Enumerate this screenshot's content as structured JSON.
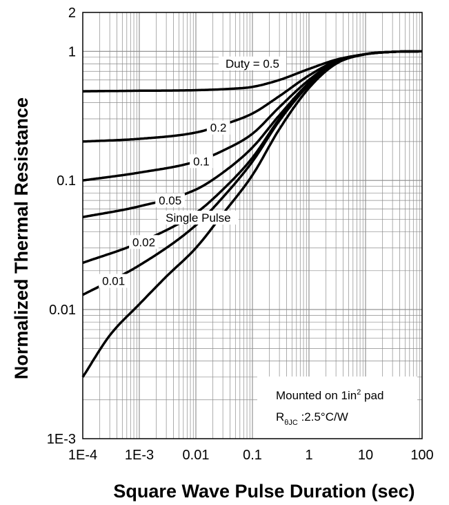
{
  "chart_data": {
    "type": "line",
    "title": "",
    "xlabel": "Square Wave Pulse Duration (sec)",
    "ylabel": "Normalized Thermal Resistance",
    "x_scale": "log",
    "y_scale": "log",
    "xlim": [
      0.0001,
      100
    ],
    "ylim": [
      0.001,
      2
    ],
    "grid": true,
    "x_ticks": [
      "1E-4",
      "1E-3",
      "0.01",
      "0.1",
      "1",
      "10",
      "100"
    ],
    "y_ticks": [
      "1E-3",
      "0.01",
      "0.1",
      "1",
      "2"
    ],
    "series": [
      {
        "name": "Duty = 0.5",
        "x": [
          0.0001,
          0.001,
          0.01,
          0.05,
          0.1,
          0.3,
          1,
          3,
          10,
          30,
          100
        ],
        "y": [
          0.49,
          0.495,
          0.5,
          0.515,
          0.53,
          0.6,
          0.73,
          0.86,
          0.95,
          0.99,
          1.0
        ]
      },
      {
        "name": "0.2",
        "x": [
          0.0001,
          0.001,
          0.01,
          0.03,
          0.1,
          0.3,
          1,
          3,
          10,
          30,
          100
        ],
        "y": [
          0.2,
          0.21,
          0.235,
          0.27,
          0.33,
          0.45,
          0.65,
          0.84,
          0.95,
          0.99,
          1.0
        ]
      },
      {
        "name": "0.1",
        "x": [
          0.0001,
          0.001,
          0.01,
          0.03,
          0.1,
          0.3,
          1,
          3,
          10,
          30,
          100
        ],
        "y": [
          0.1,
          0.115,
          0.14,
          0.17,
          0.23,
          0.37,
          0.6,
          0.83,
          0.95,
          0.99,
          1.0
        ]
      },
      {
        "name": "0.05",
        "x": [
          0.0001,
          0.001,
          0.01,
          0.03,
          0.1,
          0.3,
          1,
          3,
          10,
          30,
          100
        ],
        "y": [
          0.052,
          0.063,
          0.085,
          0.115,
          0.18,
          0.32,
          0.57,
          0.82,
          0.95,
          0.99,
          1.0
        ]
      },
      {
        "name": "0.02",
        "x": [
          0.0001,
          0.001,
          0.01,
          0.03,
          0.1,
          0.3,
          1,
          3,
          10,
          30,
          100
        ],
        "y": [
          0.023,
          0.033,
          0.056,
          0.085,
          0.15,
          0.3,
          0.56,
          0.81,
          0.95,
          0.99,
          1.0
        ]
      },
      {
        "name": "0.01",
        "x": [
          0.0001,
          0.001,
          0.01,
          0.03,
          0.1,
          0.3,
          1,
          3,
          10,
          30,
          100
        ],
        "y": [
          0.013,
          0.022,
          0.045,
          0.074,
          0.14,
          0.29,
          0.55,
          0.81,
          0.95,
          0.99,
          1.0
        ]
      },
      {
        "name": "Single Pulse",
        "x": [
          0.0001,
          0.0003,
          0.001,
          0.003,
          0.01,
          0.03,
          0.1,
          0.3,
          1,
          3,
          10,
          30,
          100
        ],
        "y": [
          0.003,
          0.0063,
          0.011,
          0.018,
          0.03,
          0.055,
          0.11,
          0.25,
          0.52,
          0.8,
          0.95,
          0.99,
          1.0
        ]
      }
    ],
    "curve_labels": [
      {
        "text": "Duty = 0.5",
        "x": 0.1
      },
      {
        "text": "0.2",
        "x": 0.025
      },
      {
        "text": "0.1",
        "x": 0.0125
      },
      {
        "text": "0.05",
        "x": 0.0035
      },
      {
        "text": "0.02",
        "x": 0.0012
      },
      {
        "text": "0.01",
        "x": 0.00035
      },
      {
        "text": "Single Pulse",
        "x": 0.011
      }
    ],
    "annotation": {
      "line1_prefix": "Mounted on 1in",
      "line1_sup": "2",
      "line1_suffix": " pad",
      "line2_R": "R",
      "line2_sub": "θJC",
      "line2_value": " :2.5°C/W"
    }
  }
}
